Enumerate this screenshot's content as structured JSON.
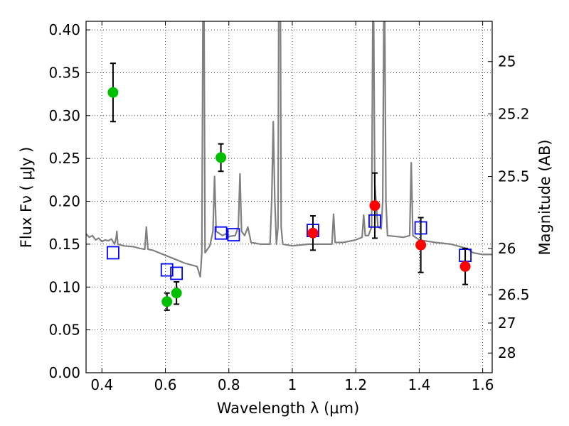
{
  "chart_data": {
    "type": "scatter",
    "xlabel": "Wavelength  λ (μm)",
    "ylabel": "Flux  Fν ( μJy )",
    "ylabel_right": "Magnitude (AB)",
    "xlim": [
      0.35,
      1.63
    ],
    "ylim": [
      0,
      0.41
    ],
    "grid": true,
    "x_ticks": [
      0.4,
      0.6,
      0.8,
      1.0,
      1.2,
      1.4,
      1.6
    ],
    "x_tick_labels": [
      "0.4",
      "0.6",
      "0.8",
      "1",
      "1.2",
      "1.4",
      "1.6"
    ],
    "y_ticks": [
      0.0,
      0.05,
      0.1,
      0.15,
      0.2,
      0.25,
      0.3,
      0.35,
      0.4
    ],
    "y_tick_labels": [
      "0.00",
      "0.05",
      "0.10",
      "0.15",
      "0.20",
      "0.25",
      "0.30",
      "0.35",
      "0.40"
    ],
    "right_ticks": [
      {
        "label": "25",
        "flux": 0.363
      },
      {
        "label": "25.2",
        "flux": 0.302
      },
      {
        "label": "25.5",
        "flux": 0.229
      },
      {
        "label": "26",
        "flux": 0.145
      },
      {
        "label": "26.5",
        "flux": 0.091
      },
      {
        "label": "27",
        "flux": 0.058
      },
      {
        "label": "28",
        "flux": 0.023
      }
    ],
    "spectrum": {
      "name": "",
      "color": "#808080",
      "points": [
        [
          0.35,
          0.162
        ],
        [
          0.36,
          0.158
        ],
        [
          0.37,
          0.16
        ],
        [
          0.38,
          0.155
        ],
        [
          0.39,
          0.157
        ],
        [
          0.4,
          0.153
        ],
        [
          0.41,
          0.155
        ],
        [
          0.42,
          0.154
        ],
        [
          0.43,
          0.156
        ],
        [
          0.44,
          0.15
        ],
        [
          0.445,
          0.158
        ],
        [
          0.447,
          0.165
        ],
        [
          0.45,
          0.15
        ],
        [
          0.47,
          0.148
        ],
        [
          0.5,
          0.147
        ],
        [
          0.52,
          0.145
        ],
        [
          0.535,
          0.144
        ],
        [
          0.54,
          0.17
        ],
        [
          0.545,
          0.144
        ],
        [
          0.56,
          0.143
        ],
        [
          0.58,
          0.14
        ],
        [
          0.6,
          0.137
        ],
        [
          0.62,
          0.134
        ],
        [
          0.64,
          0.131
        ],
        [
          0.66,
          0.128
        ],
        [
          0.68,
          0.126
        ],
        [
          0.7,
          0.124
        ],
        [
          0.71,
          0.112
        ],
        [
          0.715,
          0.14
        ],
        [
          0.72,
          0.56
        ],
        [
          0.725,
          0.14
        ],
        [
          0.74,
          0.148
        ],
        [
          0.75,
          0.165
        ],
        [
          0.755,
          0.229
        ],
        [
          0.76,
          0.165
        ],
        [
          0.78,
          0.16
        ],
        [
          0.79,
          0.162
        ],
        [
          0.8,
          0.159
        ],
        [
          0.82,
          0.16
        ],
        [
          0.83,
          0.17
        ],
        [
          0.835,
          0.232
        ],
        [
          0.84,
          0.165
        ],
        [
          0.85,
          0.16
        ],
        [
          0.86,
          0.17
        ],
        [
          0.87,
          0.152
        ],
        [
          0.9,
          0.15
        ],
        [
          0.93,
          0.15
        ],
        [
          0.935,
          0.2
        ],
        [
          0.94,
          0.293
        ],
        [
          0.945,
          0.2
        ],
        [
          0.95,
          0.15
        ],
        [
          0.955,
          0.17
        ],
        [
          0.958,
          0.5
        ],
        [
          0.962,
          0.5
        ],
        [
          0.965,
          0.17
        ],
        [
          0.97,
          0.15
        ],
        [
          1.0,
          0.148
        ],
        [
          1.05,
          0.15
        ],
        [
          1.1,
          0.15
        ],
        [
          1.125,
          0.15
        ],
        [
          1.13,
          0.185
        ],
        [
          1.135,
          0.152
        ],
        [
          1.16,
          0.152
        ],
        [
          1.2,
          0.155
        ],
        [
          1.22,
          0.158
        ],
        [
          1.225,
          0.184
        ],
        [
          1.23,
          0.16
        ],
        [
          1.24,
          0.16
        ],
        [
          1.25,
          0.17
        ],
        [
          1.255,
          0.5
        ],
        [
          1.26,
          0.22
        ],
        [
          1.27,
          0.17
        ],
        [
          1.28,
          0.168
        ],
        [
          1.285,
          0.2
        ],
        [
          1.29,
          0.5
        ],
        [
          1.295,
          0.2
        ],
        [
          1.3,
          0.16
        ],
        [
          1.35,
          0.158
        ],
        [
          1.37,
          0.16
        ],
        [
          1.375,
          0.245
        ],
        [
          1.38,
          0.16
        ],
        [
          1.4,
          0.155
        ],
        [
          1.45,
          0.152
        ],
        [
          1.5,
          0.15
        ],
        [
          1.55,
          0.145
        ],
        [
          1.57,
          0.14
        ],
        [
          1.6,
          0.138
        ],
        [
          1.63,
          0.138
        ]
      ]
    },
    "series": [
      {
        "marker": "circle",
        "color": "#00bf00",
        "points": [
          {
            "x": 0.435,
            "y": 0.327,
            "yerr": 0.034
          },
          {
            "x": 0.605,
            "y": 0.083,
            "yerr": 0.01
          },
          {
            "x": 0.635,
            "y": 0.093,
            "yerr": 0.013
          },
          {
            "x": 0.775,
            "y": 0.251,
            "yerr": 0.016
          }
        ]
      },
      {
        "marker": "circle",
        "color": "#ff0000",
        "points": [
          {
            "x": 1.065,
            "y": 0.163,
            "yerr": 0.02
          },
          {
            "x": 1.26,
            "y": 0.195,
            "yerr": 0.038
          },
          {
            "x": 1.405,
            "y": 0.149,
            "yerr": 0.032
          },
          {
            "x": 1.545,
            "y": 0.124,
            "yerr": 0.021
          }
        ]
      },
      {
        "marker": "square",
        "color": "#0000ff",
        "points": [
          {
            "x": 0.435,
            "y": 0.14
          },
          {
            "x": 0.605,
            "y": 0.12
          },
          {
            "x": 0.635,
            "y": 0.116
          },
          {
            "x": 0.775,
            "y": 0.163
          },
          {
            "x": 0.815,
            "y": 0.161
          },
          {
            "x": 1.065,
            "y": 0.166
          },
          {
            "x": 1.26,
            "y": 0.177
          },
          {
            "x": 1.405,
            "y": 0.169
          },
          {
            "x": 1.545,
            "y": 0.137
          }
        ]
      }
    ]
  }
}
